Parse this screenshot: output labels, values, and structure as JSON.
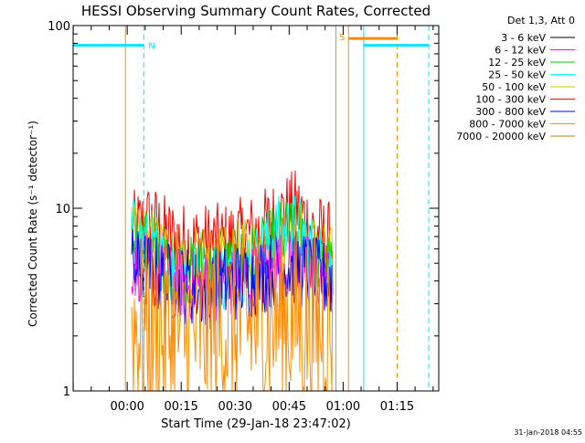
{
  "chart_data": {
    "type": "line",
    "title": "HESSI Observing Summary Count Rates, Corrected",
    "xlabel": "Start Time (29-Jan-18 23:47:02)",
    "ylabel": "Corrected Count Rate (s⁻¹ detector⁻¹)",
    "yscale": "log",
    "ylim": [
      1,
      100
    ],
    "xlim_minutes": [
      -15.03,
      86.57
    ],
    "x_tick_minutes": [
      0,
      15,
      30,
      45,
      60,
      75
    ],
    "x_tick_labels": [
      "00:00",
      "00:15",
      "00:30",
      "00:45",
      "01:00",
      "01:15"
    ],
    "y_tick_labels": [
      {
        "value": 1,
        "label": "1"
      },
      {
        "value": 10,
        "label": "10"
      },
      {
        "value": 100,
        "label": "100"
      }
    ],
    "legend": {
      "position": "right",
      "header": "Det 1,3, Att 0",
      "entries": [
        {
          "label": "3 - 6 keV",
          "color": "#000000"
        },
        {
          "label": "6 - 12 keV",
          "color": "#ff00ff"
        },
        {
          "label": "12 - 25 keV",
          "color": "#00cc00"
        },
        {
          "label": "25 - 50 keV",
          "color": "#00ffff"
        },
        {
          "label": "50 - 100 keV",
          "color": "#c8c800"
        },
        {
          "label": "100 - 300 keV",
          "color": "#ff0000"
        },
        {
          "label": "300 - 800 keV",
          "color": "#0000ff"
        },
        {
          "label": "800 - 7000 keV",
          "color": "#ff8c00"
        },
        {
          "label": "7000 - 20000 keV",
          "color": "#c08000"
        }
      ]
    },
    "segments": [
      {
        "label": "",
        "kind": "night",
        "color": "#00e5ff",
        "x_start_minutes": -15.03,
        "x_end_minutes": 4.6,
        "y": 78
      },
      {
        "label": "N",
        "kind": "marker",
        "color": "#00e5ff",
        "x_minutes": 4.6,
        "y": 78
      },
      {
        "label": "S",
        "kind": "saa",
        "color": "#ff8c00",
        "x_start_minutes": 61.5,
        "x_end_minutes": 75.0,
        "y": 85
      },
      {
        "label": "",
        "kind": "night",
        "color": "#00e5ff",
        "x_start_minutes": 65.7,
        "x_end_minutes": 83.8,
        "y": 78
      }
    ],
    "vlines_solid": [
      {
        "x_minutes": -15.03,
        "color": "#00e5ff"
      },
      {
        "x_minutes": -0.5,
        "color": "#ff8c00"
      },
      {
        "x_minutes": 58.0,
        "color": "#ff8c00"
      },
      {
        "x_minutes": 61.5,
        "color": "#ff8c00"
      },
      {
        "x_minutes": 65.7,
        "color": "#00e5ff"
      }
    ],
    "vlines_dashed": [
      {
        "x_minutes": 4.6,
        "color": "#00e5ff"
      },
      {
        "x_minutes": 75.0,
        "color": "#ff8c00"
      },
      {
        "x_minutes": 83.8,
        "color": "#00e5ff"
      }
    ],
    "data_range_minutes": [
      1.3,
      57.0
    ],
    "series": [
      {
        "name": "100 - 300 keV",
        "color": "#ff0000",
        "level": [
          7.5,
          8.5,
          7.0,
          6.5,
          6.5,
          6.5,
          7.0,
          7.5,
          9.0,
          10.0,
          7.5,
          6.5
        ],
        "spread": 0.22
      },
      {
        "name": "50 - 100 keV",
        "color": "#c8c800",
        "level": [
          7.0,
          6.5,
          5.5,
          5.0,
          5.0,
          5.0,
          5.5,
          6.0,
          7.0,
          7.5,
          6.0,
          5.0
        ],
        "spread": 0.2
      },
      {
        "name": "12 - 25 keV",
        "color": "#00cc00",
        "level": [
          7.0,
          6.0,
          5.0,
          4.5,
          4.5,
          4.5,
          5.0,
          5.5,
          7.0,
          7.5,
          5.5,
          4.5
        ],
        "spread": 0.2
      },
      {
        "name": "25 - 50 keV",
        "color": "#00ffff",
        "level": [
          7.5,
          6.0,
          4.5,
          4.2,
          4.2,
          4.2,
          4.5,
          5.5,
          7.5,
          8.0,
          5.5,
          4.5
        ],
        "spread": 0.2
      },
      {
        "name": "6 - 12 keV",
        "color": "#ff00ff",
        "level": [
          5.0,
          4.5,
          4.0,
          3.8,
          3.8,
          3.8,
          4.0,
          4.2,
          4.8,
          5.0,
          4.3,
          4.0
        ],
        "spread": 0.2
      },
      {
        "name": "300 - 800 keV",
        "color": "#0000ff",
        "level": [
          4.8,
          4.5,
          4.0,
          3.8,
          3.5,
          3.8,
          4.0,
          4.2,
          4.8,
          4.8,
          4.2,
          4.0
        ],
        "spread": 0.22
      },
      {
        "name": "800 - 7000 keV",
        "color": "#ff8c00",
        "level": [
          2.3,
          2.2,
          2.1,
          2.1,
          2.2,
          2.2,
          2.3,
          2.4,
          2.6,
          2.6,
          2.3,
          2.2
        ],
        "spread": 0.55
      }
    ]
  },
  "footer": {
    "date_stamp": "31-Jan-2018 04:55"
  }
}
